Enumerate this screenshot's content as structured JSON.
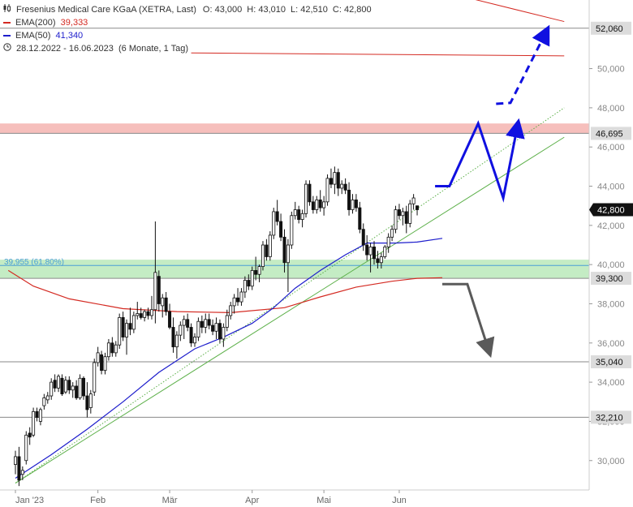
{
  "legend": {
    "instrument": "Fresenius Medical Care KGaA (XETRA, Last)",
    "open_label": "O:",
    "open": "43,000",
    "high_label": "H:",
    "high": "43,010",
    "low_label": "L:",
    "low": "42,510",
    "close_label": "C:",
    "close": "42,800",
    "ema200_label": "EMA(200)",
    "ema200_value": "39,333",
    "ema50_label": "EMA(50)",
    "ema50_value": "41,340",
    "range": "28.12.2022 - 16.06.2023",
    "interval": "(6 Monate, 1 Tag)"
  },
  "colors": {
    "ema200": "#d42a22",
    "ema50": "#1d1dcc",
    "trend": "#5db04a",
    "resistance_zone": "#f6bfbc",
    "support_zone": "#c4ecc4",
    "scenario_up": "#1010e0",
    "scenario_down": "#5a5a5a",
    "candle_up": "#ffffff",
    "candle_down": "#111111"
  },
  "fib_label": "39,955 (61.80%)",
  "chart_data": {
    "type": "candlestick",
    "ylim": [
      28500,
      53500
    ],
    "ytick_values": [
      30000,
      32000,
      34000,
      36000,
      38000,
      40000,
      42000,
      44000,
      46000,
      48000,
      50000
    ],
    "ytick_labels": [
      "30,000",
      "32,000",
      "34,000",
      "36,000",
      "38,000",
      "40,000",
      "42,000",
      "44,000",
      "46,000",
      "48,000",
      "50,000"
    ],
    "xtick_labels": [
      "Jan '23",
      "Feb",
      "Mär",
      "Apr",
      "Mai",
      "Jun"
    ],
    "xtick_index": [
      0,
      23,
      43,
      66,
      86,
      107
    ],
    "highlighted_levels": [
      {
        "value": 52060,
        "label": "52,060"
      },
      {
        "value": 46695,
        "label": "46,695"
      },
      {
        "value": 39300,
        "label": "39,300"
      },
      {
        "value": 35040,
        "label": "35,040"
      },
      {
        "value": 32210,
        "label": "32,210"
      }
    ],
    "last_price": {
      "value": 42800,
      "label": "42,800"
    },
    "fib_level": 39955,
    "zones": [
      {
        "name": "resistance",
        "from": 46695,
        "to": 47200
      },
      {
        "name": "support",
        "from": 39300,
        "to": 40250
      }
    ],
    "candles": [
      {
        "o": 29800,
        "h": 30500,
        "l": 29300,
        "c": 30200
      },
      {
        "o": 30200,
        "h": 30700,
        "l": 28700,
        "c": 29000
      },
      {
        "o": 29300,
        "h": 29700,
        "l": 29000,
        "c": 29500
      },
      {
        "o": 30000,
        "h": 31500,
        "l": 29800,
        "c": 31300
      },
      {
        "o": 31400,
        "h": 31700,
        "l": 30800,
        "c": 31200
      },
      {
        "o": 31300,
        "h": 32700,
        "l": 31200,
        "c": 32500
      },
      {
        "o": 32500,
        "h": 32700,
        "l": 32000,
        "c": 32200
      },
      {
        "o": 32000,
        "h": 32700,
        "l": 31800,
        "c": 32600
      },
      {
        "o": 32800,
        "h": 33400,
        "l": 32600,
        "c": 33200
      },
      {
        "o": 33100,
        "h": 33500,
        "l": 32900,
        "c": 33300
      },
      {
        "o": 33300,
        "h": 34200,
        "l": 33100,
        "c": 34000
      },
      {
        "o": 34100,
        "h": 34400,
        "l": 33500,
        "c": 33700
      },
      {
        "o": 33700,
        "h": 34400,
        "l": 33500,
        "c": 34300
      },
      {
        "o": 34200,
        "h": 34400,
        "l": 33300,
        "c": 33400
      },
      {
        "o": 33500,
        "h": 34300,
        "l": 33400,
        "c": 34100
      },
      {
        "o": 34100,
        "h": 34300,
        "l": 33400,
        "c": 33600
      },
      {
        "o": 33600,
        "h": 34000,
        "l": 33200,
        "c": 33800
      },
      {
        "o": 33800,
        "h": 34100,
        "l": 33100,
        "c": 33200
      },
      {
        "o": 33200,
        "h": 34400,
        "l": 33100,
        "c": 34200
      },
      {
        "o": 34200,
        "h": 34300,
        "l": 33100,
        "c": 33300
      },
      {
        "o": 33300,
        "h": 34000,
        "l": 32200,
        "c": 32600
      },
      {
        "o": 32700,
        "h": 33600,
        "l": 32400,
        "c": 33400
      },
      {
        "o": 33500,
        "h": 35200,
        "l": 33300,
        "c": 35000
      },
      {
        "o": 35000,
        "h": 35800,
        "l": 34800,
        "c": 35500
      },
      {
        "o": 35400,
        "h": 35600,
        "l": 34400,
        "c": 34600
      },
      {
        "o": 34600,
        "h": 35500,
        "l": 34400,
        "c": 35300
      },
      {
        "o": 35300,
        "h": 36200,
        "l": 35100,
        "c": 36000
      },
      {
        "o": 36000,
        "h": 36300,
        "l": 35300,
        "c": 35500
      },
      {
        "o": 35500,
        "h": 36100,
        "l": 35300,
        "c": 35900
      },
      {
        "o": 35900,
        "h": 37500,
        "l": 35700,
        "c": 37300
      },
      {
        "o": 37300,
        "h": 37600,
        "l": 36100,
        "c": 36300
      },
      {
        "o": 36300,
        "h": 37200,
        "l": 35400,
        "c": 37000
      },
      {
        "o": 37000,
        "h": 37800,
        "l": 36400,
        "c": 36700
      },
      {
        "o": 36700,
        "h": 37600,
        "l": 36500,
        "c": 37400
      },
      {
        "o": 37400,
        "h": 38100,
        "l": 37200,
        "c": 37500
      },
      {
        "o": 37500,
        "h": 37800,
        "l": 37200,
        "c": 37300
      },
      {
        "o": 37300,
        "h": 37700,
        "l": 37100,
        "c": 37600
      },
      {
        "o": 37600,
        "h": 37800,
        "l": 37200,
        "c": 37400
      },
      {
        "o": 37400,
        "h": 38400,
        "l": 37200,
        "c": 37700
      },
      {
        "o": 37700,
        "h": 42200,
        "l": 37000,
        "c": 39600
      },
      {
        "o": 39400,
        "h": 39700,
        "l": 37600,
        "c": 38000
      },
      {
        "o": 37900,
        "h": 38500,
        "l": 37300,
        "c": 38300
      },
      {
        "o": 38300,
        "h": 38600,
        "l": 37400,
        "c": 37600
      },
      {
        "o": 37600,
        "h": 38000,
        "l": 36700,
        "c": 36800
      },
      {
        "o": 36800,
        "h": 37300,
        "l": 35500,
        "c": 35800
      },
      {
        "o": 35800,
        "h": 36600,
        "l": 35200,
        "c": 36400
      },
      {
        "o": 36400,
        "h": 37100,
        "l": 36100,
        "c": 36900
      },
      {
        "o": 36900,
        "h": 37400,
        "l": 36200,
        "c": 37200
      },
      {
        "o": 37200,
        "h": 37500,
        "l": 36600,
        "c": 36800
      },
      {
        "o": 36800,
        "h": 37000,
        "l": 35800,
        "c": 36000
      },
      {
        "o": 36000,
        "h": 36500,
        "l": 35800,
        "c": 36300
      },
      {
        "o": 36300,
        "h": 37300,
        "l": 36100,
        "c": 37100
      },
      {
        "o": 37100,
        "h": 37400,
        "l": 36500,
        "c": 36800
      },
      {
        "o": 36800,
        "h": 37500,
        "l": 36500,
        "c": 37200
      },
      {
        "o": 37200,
        "h": 37500,
        "l": 36700,
        "c": 36900
      },
      {
        "o": 36900,
        "h": 37200,
        "l": 36400,
        "c": 36600
      },
      {
        "o": 36600,
        "h": 37300,
        "l": 36200,
        "c": 37000
      },
      {
        "o": 37000,
        "h": 37200,
        "l": 36000,
        "c": 36200
      },
      {
        "o": 36200,
        "h": 37000,
        "l": 35800,
        "c": 36800
      },
      {
        "o": 36800,
        "h": 37700,
        "l": 36600,
        "c": 37400
      },
      {
        "o": 37400,
        "h": 38100,
        "l": 37200,
        "c": 37900
      },
      {
        "o": 37900,
        "h": 38500,
        "l": 37500,
        "c": 38300
      },
      {
        "o": 38300,
        "h": 38800,
        "l": 37900,
        "c": 38100
      },
      {
        "o": 38100,
        "h": 38800,
        "l": 37900,
        "c": 38600
      },
      {
        "o": 38600,
        "h": 39400,
        "l": 38300,
        "c": 39200
      },
      {
        "o": 39200,
        "h": 39500,
        "l": 38700,
        "c": 38900
      },
      {
        "o": 38900,
        "h": 39900,
        "l": 38700,
        "c": 39700
      },
      {
        "o": 39700,
        "h": 40400,
        "l": 39200,
        "c": 39500
      },
      {
        "o": 39500,
        "h": 40000,
        "l": 39100,
        "c": 39900
      },
      {
        "o": 39900,
        "h": 41200,
        "l": 39700,
        "c": 41000
      },
      {
        "o": 41000,
        "h": 41300,
        "l": 40200,
        "c": 40400
      },
      {
        "o": 40400,
        "h": 41700,
        "l": 40200,
        "c": 41500
      },
      {
        "o": 41500,
        "h": 42900,
        "l": 41300,
        "c": 42700
      },
      {
        "o": 42700,
        "h": 43300,
        "l": 42000,
        "c": 42200
      },
      {
        "o": 42200,
        "h": 42600,
        "l": 41200,
        "c": 41400
      },
      {
        "o": 41400,
        "h": 41800,
        "l": 39600,
        "c": 40100
      },
      {
        "o": 40100,
        "h": 41300,
        "l": 38600,
        "c": 41000
      },
      {
        "o": 41000,
        "h": 42700,
        "l": 40800,
        "c": 42500
      },
      {
        "o": 42500,
        "h": 43200,
        "l": 42300,
        "c": 42800
      },
      {
        "o": 42800,
        "h": 43000,
        "l": 42100,
        "c": 42300
      },
      {
        "o": 42300,
        "h": 42800,
        "l": 41900,
        "c": 42600
      },
      {
        "o": 42600,
        "h": 44300,
        "l": 42400,
        "c": 44100
      },
      {
        "o": 44100,
        "h": 44300,
        "l": 43000,
        "c": 43200
      },
      {
        "o": 43200,
        "h": 43500,
        "l": 42600,
        "c": 42800
      },
      {
        "o": 42800,
        "h": 43500,
        "l": 42600,
        "c": 43300
      },
      {
        "o": 43300,
        "h": 43800,
        "l": 42700,
        "c": 42900
      },
      {
        "o": 42900,
        "h": 43500,
        "l": 42500,
        "c": 43200
      },
      {
        "o": 43200,
        "h": 44600,
        "l": 43000,
        "c": 44400
      },
      {
        "o": 44400,
        "h": 44900,
        "l": 43900,
        "c": 44100
      },
      {
        "o": 44100,
        "h": 45000,
        "l": 43600,
        "c": 44700
      },
      {
        "o": 44700,
        "h": 44900,
        "l": 43500,
        "c": 43900
      },
      {
        "o": 43900,
        "h": 44300,
        "l": 43600,
        "c": 44100
      },
      {
        "o": 44100,
        "h": 44400,
        "l": 43600,
        "c": 43800
      },
      {
        "o": 43800,
        "h": 44200,
        "l": 42500,
        "c": 42800
      },
      {
        "o": 42800,
        "h": 43600,
        "l": 42600,
        "c": 43300
      },
      {
        "o": 43300,
        "h": 43600,
        "l": 42700,
        "c": 42900
      },
      {
        "o": 42900,
        "h": 43200,
        "l": 41600,
        "c": 41800
      },
      {
        "o": 41800,
        "h": 42100,
        "l": 40700,
        "c": 41000
      },
      {
        "o": 41000,
        "h": 41500,
        "l": 40200,
        "c": 40500
      },
      {
        "o": 40500,
        "h": 41100,
        "l": 39600,
        "c": 40900
      },
      {
        "o": 40900,
        "h": 41200,
        "l": 40000,
        "c": 40300
      },
      {
        "o": 40300,
        "h": 40700,
        "l": 39800,
        "c": 40100
      },
      {
        "o": 40100,
        "h": 40600,
        "l": 39800,
        "c": 40400
      },
      {
        "o": 40400,
        "h": 41000,
        "l": 40300,
        "c": 40900
      },
      {
        "o": 40900,
        "h": 41600,
        "l": 40600,
        "c": 41400
      },
      {
        "o": 41400,
        "h": 42000,
        "l": 41200,
        "c": 41800
      },
      {
        "o": 41800,
        "h": 43000,
        "l": 41600,
        "c": 42800
      },
      {
        "o": 42800,
        "h": 43100,
        "l": 42300,
        "c": 42500
      },
      {
        "o": 42500,
        "h": 42900,
        "l": 42000,
        "c": 42700
      },
      {
        "o": 42700,
        "h": 43000,
        "l": 41600,
        "c": 42100
      },
      {
        "o": 42100,
        "h": 43300,
        "l": 41900,
        "c": 43100
      },
      {
        "o": 43100,
        "h": 43600,
        "l": 42800,
        "c": 43400
      },
      {
        "o": 43000,
        "h": 43010,
        "l": 42510,
        "c": 42800
      }
    ],
    "ema200": [
      [
        -2,
        39700
      ],
      [
        5,
        38900
      ],
      [
        15,
        38250
      ],
      [
        30,
        37750
      ],
      [
        45,
        37600
      ],
      [
        60,
        37550
      ],
      [
        75,
        37800
      ],
      [
        85,
        38350
      ],
      [
        95,
        38850
      ],
      [
        105,
        39150
      ],
      [
        112,
        39300
      ],
      [
        119,
        39333
      ]
    ],
    "ema50": [
      [
        0,
        29100
      ],
      [
        10,
        30300
      ],
      [
        20,
        31600
      ],
      [
        30,
        33000
      ],
      [
        40,
        34500
      ],
      [
        50,
        35700
      ],
      [
        58,
        36300
      ],
      [
        66,
        37000
      ],
      [
        72,
        37800
      ],
      [
        78,
        38800
      ],
      [
        85,
        39700
      ],
      [
        92,
        40500
      ],
      [
        98,
        41100
      ],
      [
        106,
        41100
      ],
      [
        112,
        41150
      ],
      [
        119,
        41340
      ]
    ],
    "trendlines": [
      {
        "name": "support-trend",
        "style": "solid",
        "from": [
          0,
          28850
        ],
        "to": [
          153,
          46500
        ]
      },
      {
        "name": "inner-trend",
        "style": "dotted",
        "from": [
          0,
          28850
        ],
        "to": [
          153,
          48000
        ]
      },
      {
        "name": "upper-resistance",
        "style": "solid",
        "from": [
          111,
          54300
        ],
        "to": [
          153,
          52400
        ]
      },
      {
        "name": "upper-resistance-2",
        "style": "solid",
        "from": [
          49,
          50800
        ],
        "to": [
          153,
          50650
        ]
      }
    ],
    "scenario_up_solid": [
      [
        117,
        44000
      ],
      [
        121,
        44000
      ],
      [
        129,
        47200
      ],
      [
        136,
        43400
      ],
      [
        140,
        47100
      ]
    ],
    "scenario_up_dashed": [
      [
        134,
        48200
      ],
      [
        138,
        48250
      ],
      [
        148,
        51900
      ]
    ],
    "scenario_down": [
      [
        119,
        39000
      ],
      [
        126,
        39000
      ],
      [
        132,
        35600
      ]
    ]
  }
}
